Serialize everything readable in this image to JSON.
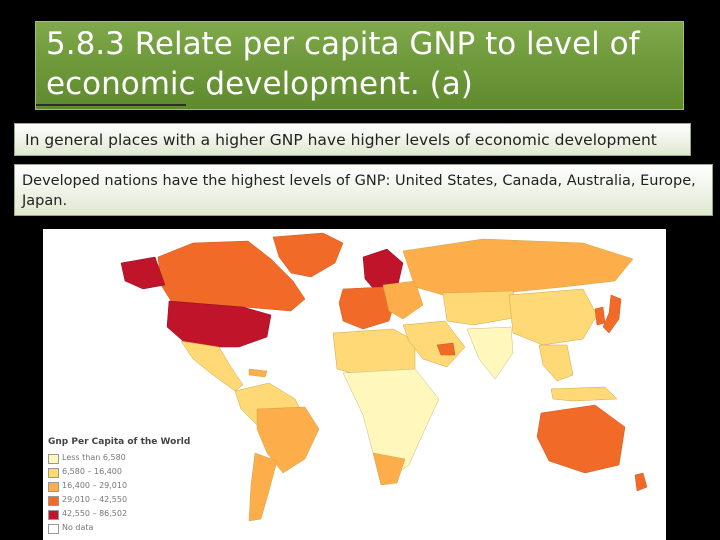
{
  "slide": {
    "title": "5.8.3 Relate per capita GNP to level of economic development. (a)",
    "note_1": "In general places with a higher GNP have higher levels of economic development",
    "note_2": "Developed nations have the highest levels of GNP: United States, Canada, Australia, Europe, Japan."
  },
  "map": {
    "legend_title": "Gnp Per Capita of the World",
    "legend_items": [
      {
        "label": "Less than 6,580",
        "color": "#fff7bc"
      },
      {
        "label": "6,580 – 16,400",
        "color": "#fed976"
      },
      {
        "label": "16,400 – 29,010",
        "color": "#fdae4b"
      },
      {
        "label": "29,010 – 42,550",
        "color": "#f16a28"
      },
      {
        "label": "42,550 – 86,502",
        "color": "#c0142a"
      },
      {
        "label": "No data",
        "color": "#ffffff"
      }
    ],
    "ocean_color": "#ffffff"
  }
}
